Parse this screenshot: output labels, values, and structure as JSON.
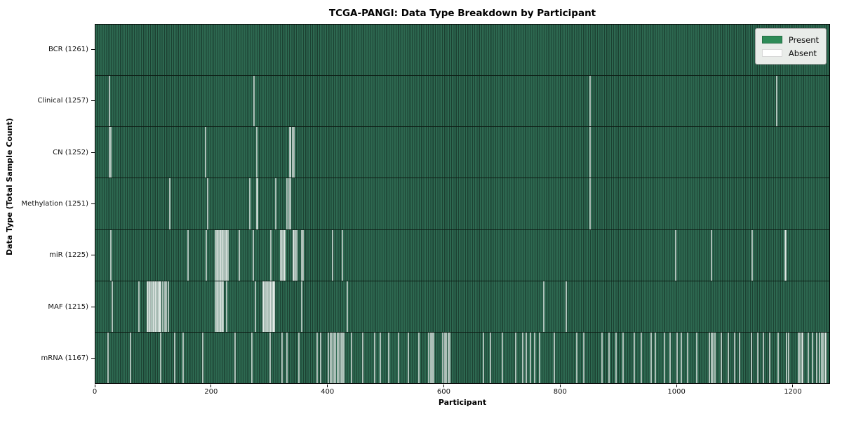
{
  "title": "TCGA-PANGI: Data Type Breakdown by Participant",
  "xlabel": "Participant",
  "ylabel": "Data Type (Total Sample Count)",
  "legend": {
    "present_label": "Present",
    "absent_label": "Absent"
  },
  "colors": {
    "present": "#2e8b57",
    "absent": "#ffffff",
    "row_fill_light": "#2d6850",
    "row_fill_dark": "#1c4132",
    "row_separator": "#0d1d15",
    "legend_bg": "#e9ece9",
    "legend_border": "#a6a6a6"
  },
  "chart_data": {
    "type": "heatmap",
    "title": "TCGA-PANGI: Data Type Breakdown by Participant",
    "xlabel": "Participant",
    "ylabel": "Data Type (Total Sample Count)",
    "legend_entries": [
      "Present",
      "Absent"
    ],
    "legend_position": "upper right",
    "grid": false,
    "n_participants": 1261,
    "xlim": [
      0,
      1264
    ],
    "x_ticks": [
      0,
      200,
      400,
      600,
      800,
      1000,
      1200
    ],
    "rows": [
      {
        "label": "BCR (1261)",
        "data_type": "BCR",
        "total_samples": 1261,
        "absent_participants": []
      },
      {
        "label": "Clinical (1257)",
        "data_type": "Clinical",
        "total_samples": 1257,
        "absent_participants": [
          24,
          273,
          852,
          1173
        ]
      },
      {
        "label": "CN (1252)",
        "data_type": "CN",
        "total_samples": 1252,
        "absent_participants": [
          24,
          26,
          189,
          277,
          334,
          336,
          339,
          341,
          852
        ]
      },
      {
        "label": "Methylation (1251)",
        "data_type": "Methylation",
        "total_samples": 1251,
        "absent_participants": [
          128,
          193,
          265,
          277,
          279,
          310,
          330,
          333,
          336,
          852
        ]
      },
      {
        "label": "miR (1225)",
        "data_type": "miR",
        "total_samples": 1225,
        "absent_participants": [
          26,
          159,
          191,
          206,
          208,
          210,
          212,
          214,
          216,
          218,
          220,
          222,
          224,
          226,
          228,
          247,
          271,
          301,
          318,
          320,
          322,
          324,
          326,
          340,
          342,
          344,
          346,
          355,
          357,
          408,
          425,
          999,
          1061,
          1130,
          1187,
          1189
        ]
      },
      {
        "label": "MAF (1215)",
        "data_type": "MAF",
        "total_samples": 1215,
        "absent_participants": [
          28,
          75,
          89,
          90,
          92,
          94,
          96,
          98,
          100,
          102,
          104,
          106,
          108,
          110,
          111,
          112,
          116,
          119,
          122,
          125,
          206,
          208,
          210,
          212,
          214,
          216,
          218,
          220,
          225,
          275,
          288,
          290,
          292,
          294,
          296,
          298,
          300,
          302,
          304,
          306,
          307,
          308,
          355,
          433,
          772,
          810
        ]
      },
      {
        "label": "mRNA (1167)",
        "data_type": "mRNA",
        "total_samples": 1167,
        "absent_participants": [
          21,
          60,
          112,
          136,
          150,
          184,
          240,
          269,
          300,
          321,
          329,
          350,
          381,
          387,
          401,
          404,
          407,
          410,
          413,
          416,
          419,
          422,
          425,
          427,
          441,
          460,
          480,
          490,
          505,
          522,
          538,
          556,
          574,
          577,
          580,
          582,
          598,
          601,
          604,
          607,
          610,
          668,
          680,
          700,
          723,
          735,
          741,
          749,
          756,
          764,
          790,
          828,
          840,
          872,
          884,
          896,
          908,
          928,
          940,
          957,
          964,
          979,
          989,
          1001,
          1009,
          1020,
          1035,
          1057,
          1060,
          1063,
          1067,
          1077,
          1090,
          1100,
          1109,
          1129,
          1140,
          1150,
          1161,
          1175,
          1190,
          1194,
          1210,
          1213,
          1216,
          1218,
          1227,
          1235,
          1242,
          1246,
          1250,
          1253,
          1256,
          1258
        ]
      }
    ]
  }
}
